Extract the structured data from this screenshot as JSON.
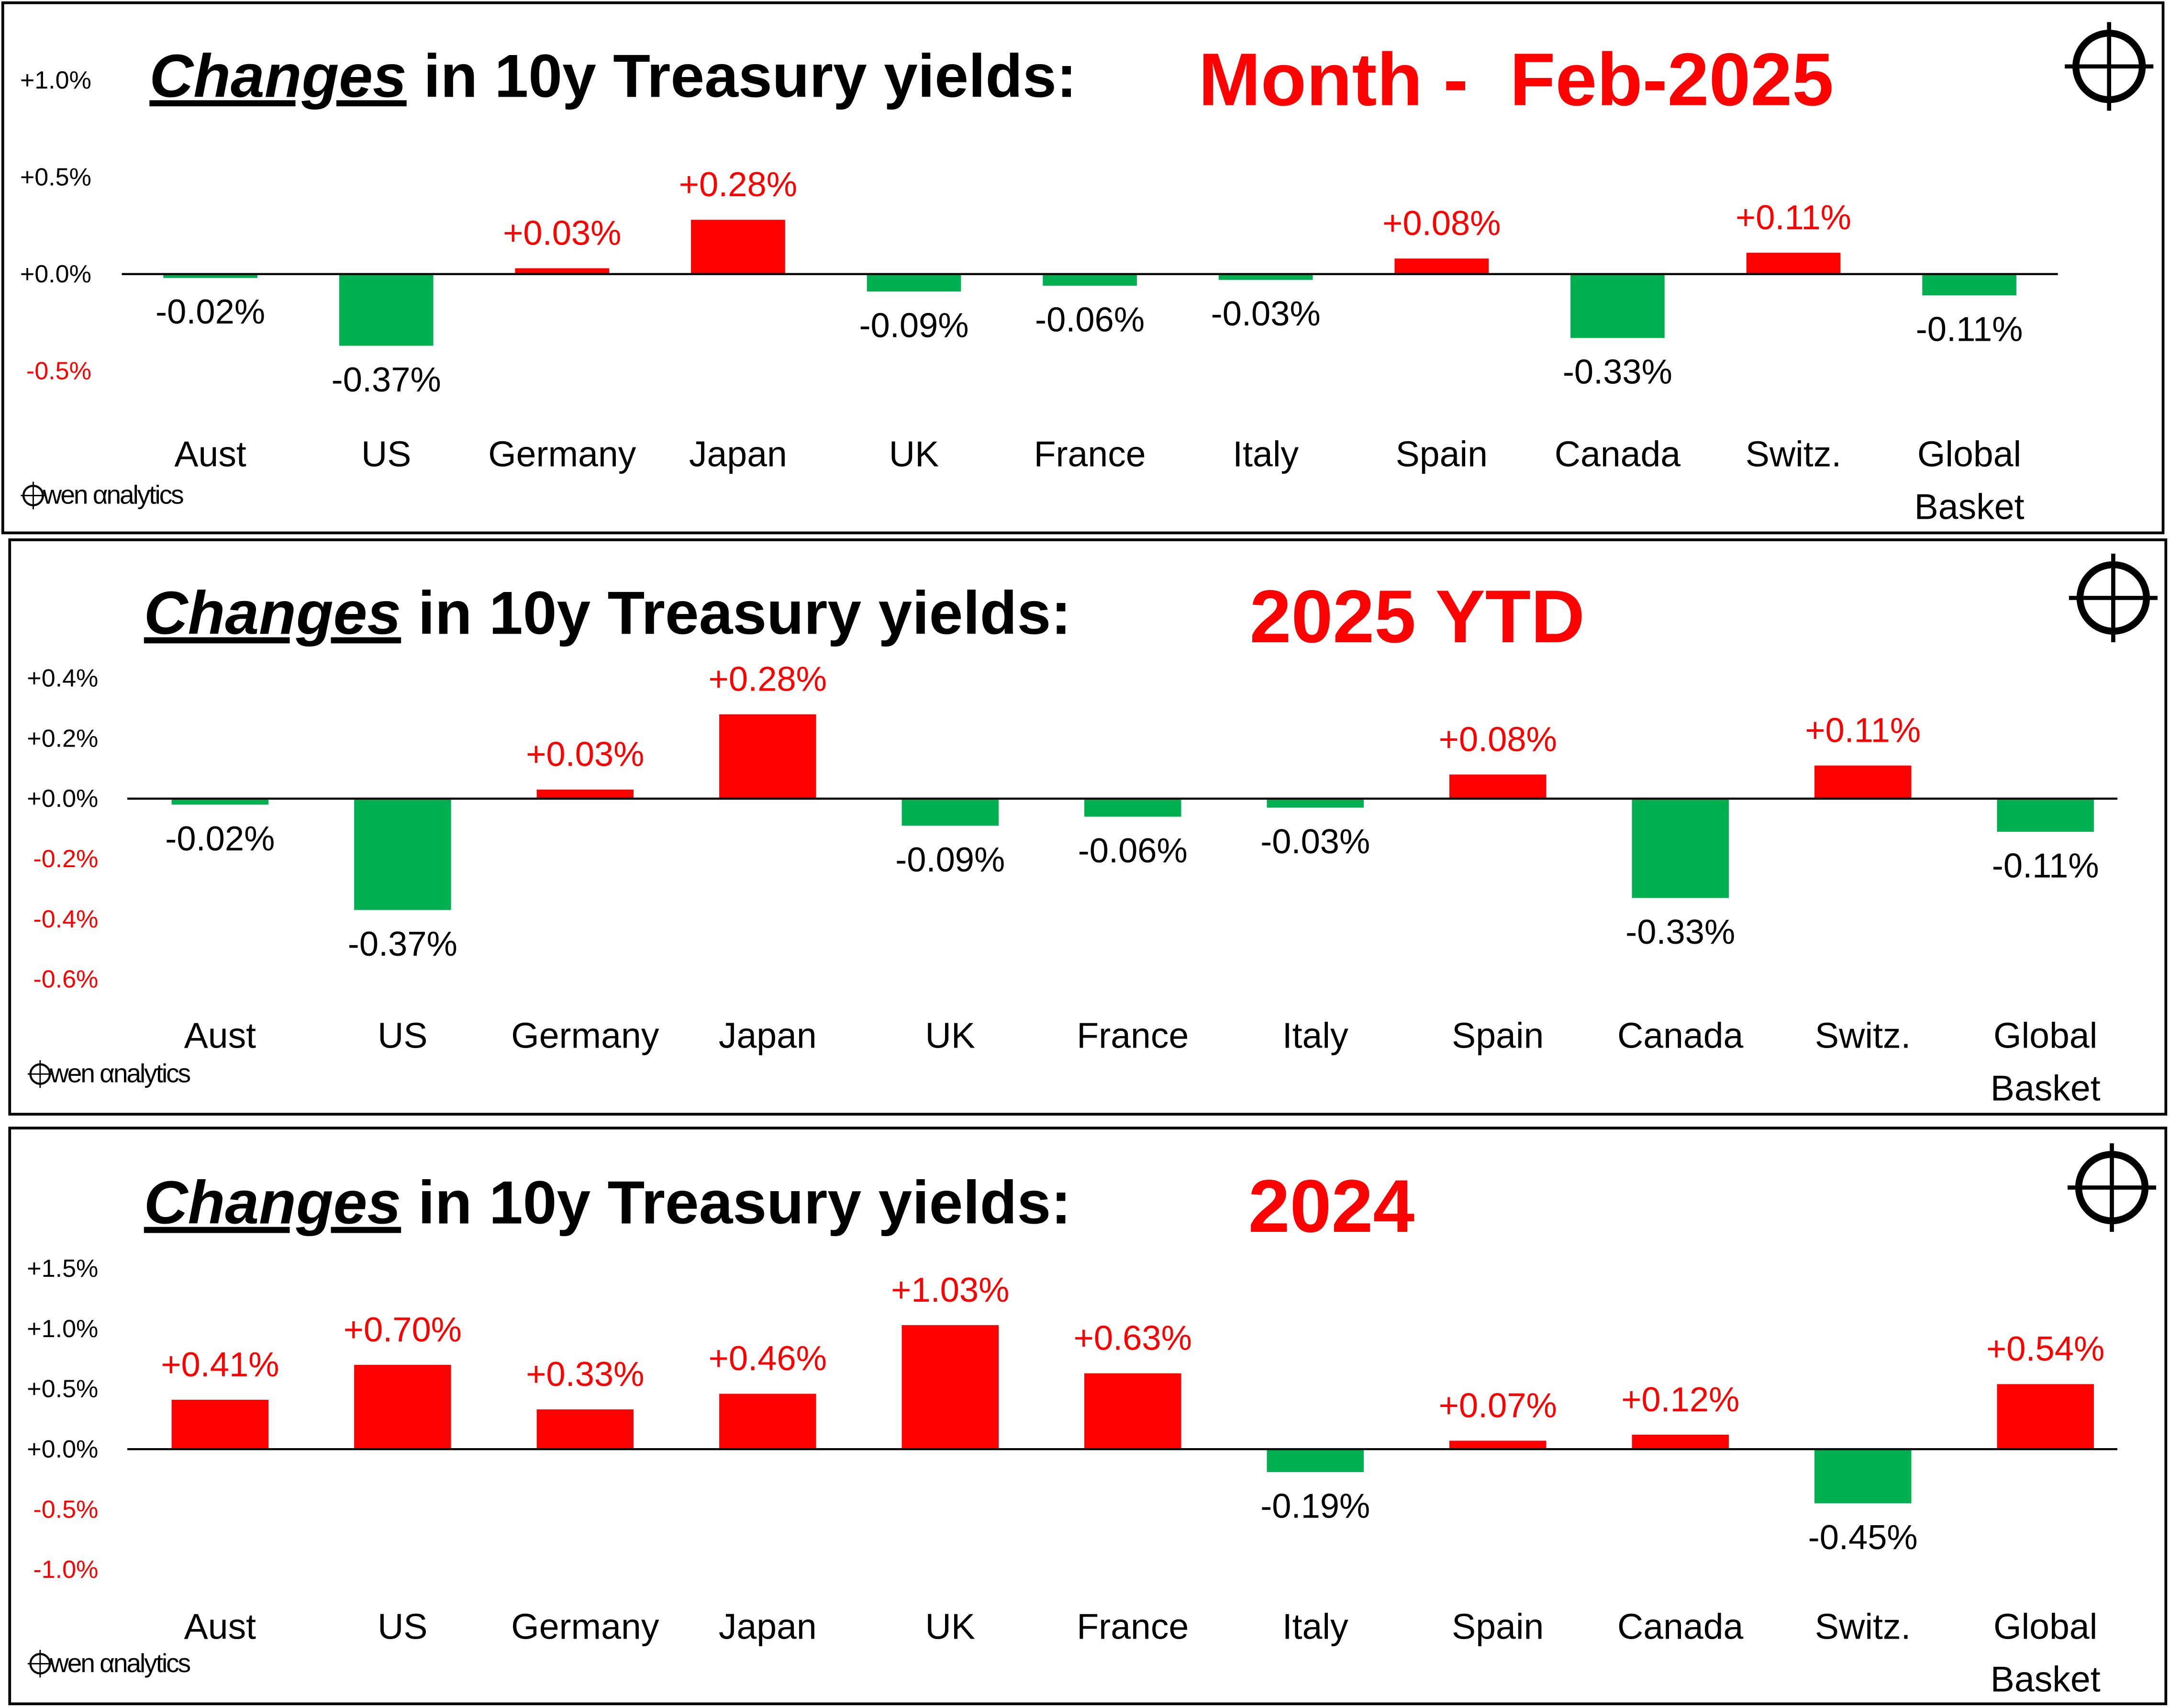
{
  "colors": {
    "positive": "#FF0000",
    "negative": "#00B050",
    "positive_text": "#FF0000",
    "negative_text": "#000000",
    "negative_tick": "#FF0000"
  },
  "logo_text": "wen αnalytics",
  "icon": "crosshair-icon",
  "chart_data": [
    {
      "type": "bar",
      "title_emph": "Changes",
      "title_rest": "in 10y Treasury yields:",
      "subtitle": "Month -  Feb-2025",
      "categories": [
        "Aust",
        "US",
        "Germany",
        "Japan",
        "UK",
        "France",
        "Italy",
        "Spain",
        "Canada",
        "Switz.",
        "Global Basket"
      ],
      "values": [
        -0.02,
        -0.37,
        0.03,
        0.28,
        -0.09,
        -0.06,
        -0.03,
        0.08,
        -0.33,
        0.11,
        -0.11
      ],
      "labels": [
        "-0.02%",
        "-0.37%",
        "+0.03%",
        "+0.28%",
        "-0.09%",
        "-0.06%",
        "-0.03%",
        "+0.08%",
        "-0.33%",
        "+0.11%",
        "-0.11%"
      ],
      "yticks": [
        "+1.0%",
        "+0.5%",
        "+0.0%",
        "-0.5%"
      ],
      "ytick_values": [
        1.0,
        0.5,
        0.0,
        -0.5
      ],
      "ylim": [
        -0.5,
        1.0
      ],
      "unit": "%"
    },
    {
      "type": "bar",
      "title_emph": "Changes",
      "title_rest": "in 10y Treasury yields:",
      "subtitle": "2025 YTD",
      "categories": [
        "Aust",
        "US",
        "Germany",
        "Japan",
        "UK",
        "France",
        "Italy",
        "Spain",
        "Canada",
        "Switz.",
        "Global Basket"
      ],
      "values": [
        -0.02,
        -0.37,
        0.03,
        0.28,
        -0.09,
        -0.06,
        -0.03,
        0.08,
        -0.33,
        0.11,
        -0.11
      ],
      "labels": [
        "-0.02%",
        "-0.37%",
        "+0.03%",
        "+0.28%",
        "-0.09%",
        "-0.06%",
        "-0.03%",
        "+0.08%",
        "-0.33%",
        "+0.11%",
        "-0.11%"
      ],
      "yticks": [
        "+0.4%",
        "+0.2%",
        "+0.0%",
        "-0.2%",
        "-0.4%",
        "-0.6%"
      ],
      "ytick_values": [
        0.4,
        0.2,
        0.0,
        -0.2,
        -0.4,
        -0.6
      ],
      "ylim": [
        -0.6,
        0.4
      ],
      "unit": "%"
    },
    {
      "type": "bar",
      "title_emph": "Changes",
      "title_rest": "in 10y Treasury yields:",
      "subtitle": "2024",
      "categories": [
        "Aust",
        "US",
        "Germany",
        "Japan",
        "UK",
        "France",
        "Italy",
        "Spain",
        "Canada",
        "Switz.",
        "Global Basket"
      ],
      "values": [
        0.41,
        0.7,
        0.33,
        0.46,
        1.03,
        0.63,
        -0.19,
        0.07,
        0.12,
        -0.45,
        0.54
      ],
      "labels": [
        "+0.41%",
        "+0.70%",
        "+0.33%",
        "+0.46%",
        "+1.03%",
        "+0.63%",
        "-0.19%",
        "+0.07%",
        "+0.12%",
        "-0.45%",
        "+0.54%"
      ],
      "yticks": [
        "+1.5%",
        "+1.0%",
        "+0.5%",
        "+0.0%",
        "-0.5%",
        "-1.0%"
      ],
      "ytick_values": [
        1.5,
        1.0,
        0.5,
        0.0,
        -0.5,
        -1.0
      ],
      "ylim": [
        -1.0,
        1.5
      ],
      "unit": "%"
    }
  ]
}
